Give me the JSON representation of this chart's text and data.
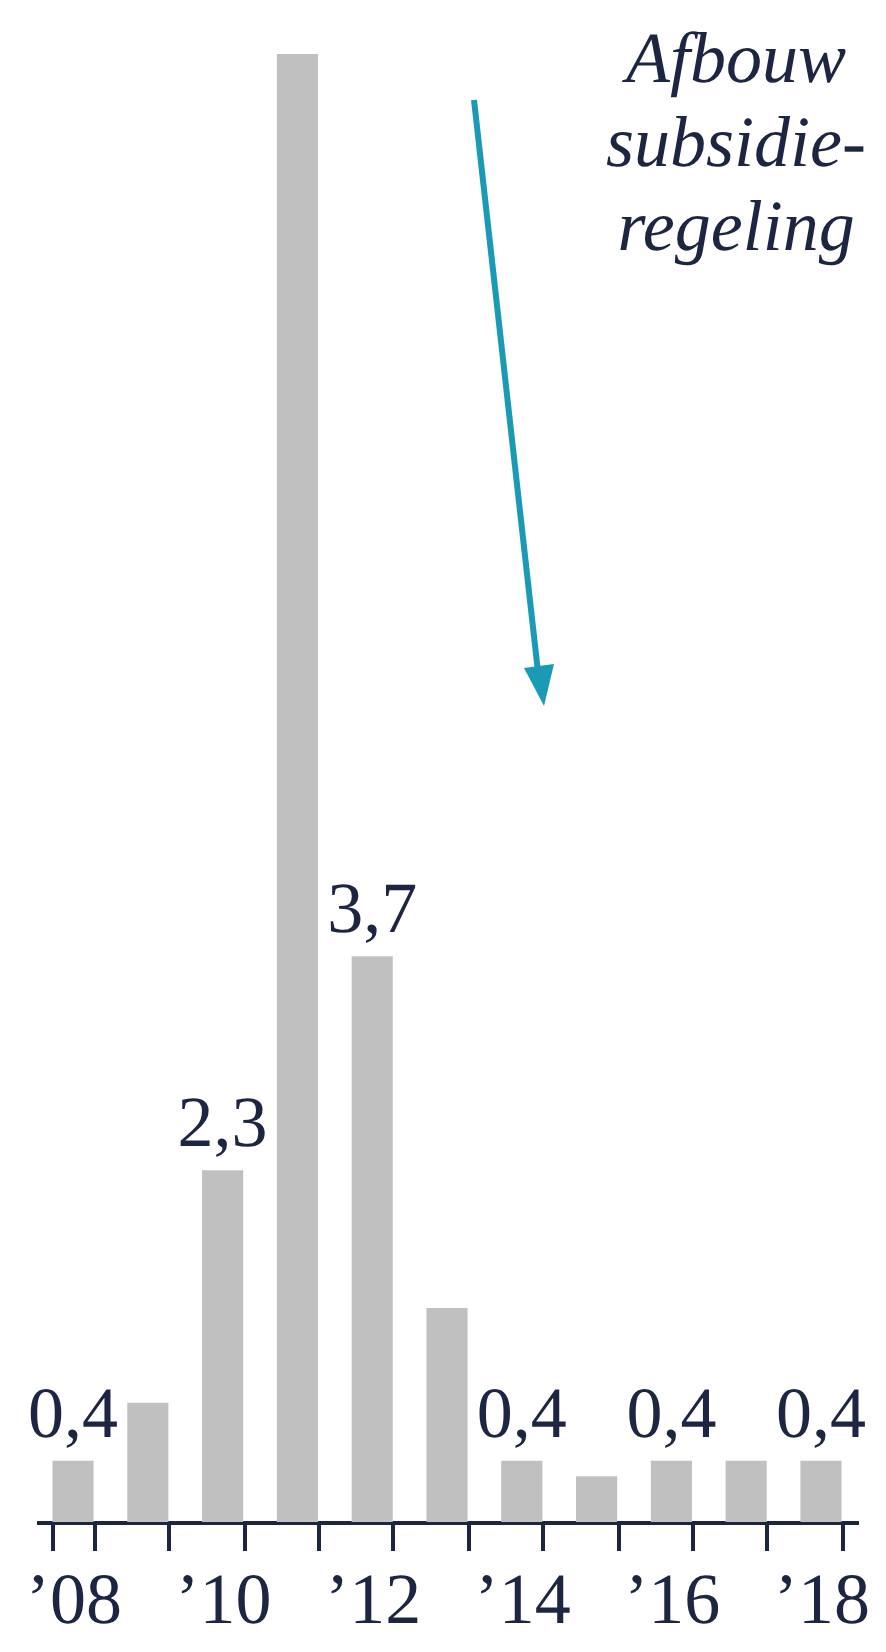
{
  "chart_data": {
    "type": "bar",
    "categories": [
      "’08",
      null,
      "’10",
      null,
      "’12",
      null,
      "’14",
      null,
      "’16",
      null,
      "’18"
    ],
    "values": [
      0.4,
      0.78,
      2.3,
      9.6,
      3.7,
      1.4,
      0.4,
      0.3,
      0.4,
      0.4,
      0.4
    ],
    "value_labels": [
      "0,4",
      null,
      "2,3",
      null,
      "3,7",
      null,
      "0,4",
      null,
      "0,4",
      null,
      "0,4"
    ],
    "color": "#c0c0c0",
    "tick_labels": "x",
    "annotations": [
      "Afbouw subsidie-regeling"
    ]
  }
}
